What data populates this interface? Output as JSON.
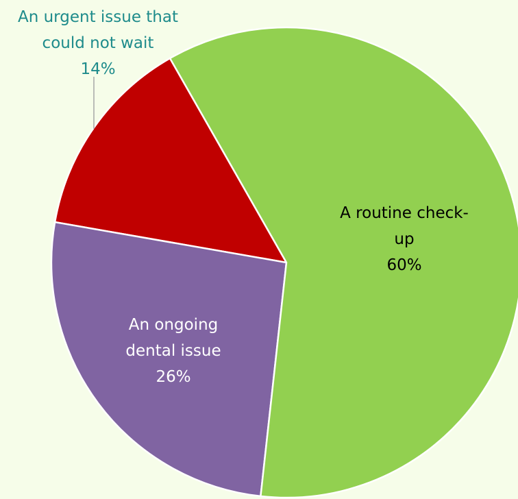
{
  "chart_data": {
    "type": "pie",
    "categories": [
      "A routine check-up",
      "An ongoing dental issue",
      "An urgent issue that could not wait"
    ],
    "values": [
      60,
      26,
      14
    ],
    "value_labels": [
      "60%",
      "26%",
      "14%"
    ],
    "colors": [
      "#92d050",
      "#8064a2",
      "#c00000"
    ],
    "label_colors": [
      "#000000",
      "#ffffff",
      "#1e8b8b"
    ]
  }
}
